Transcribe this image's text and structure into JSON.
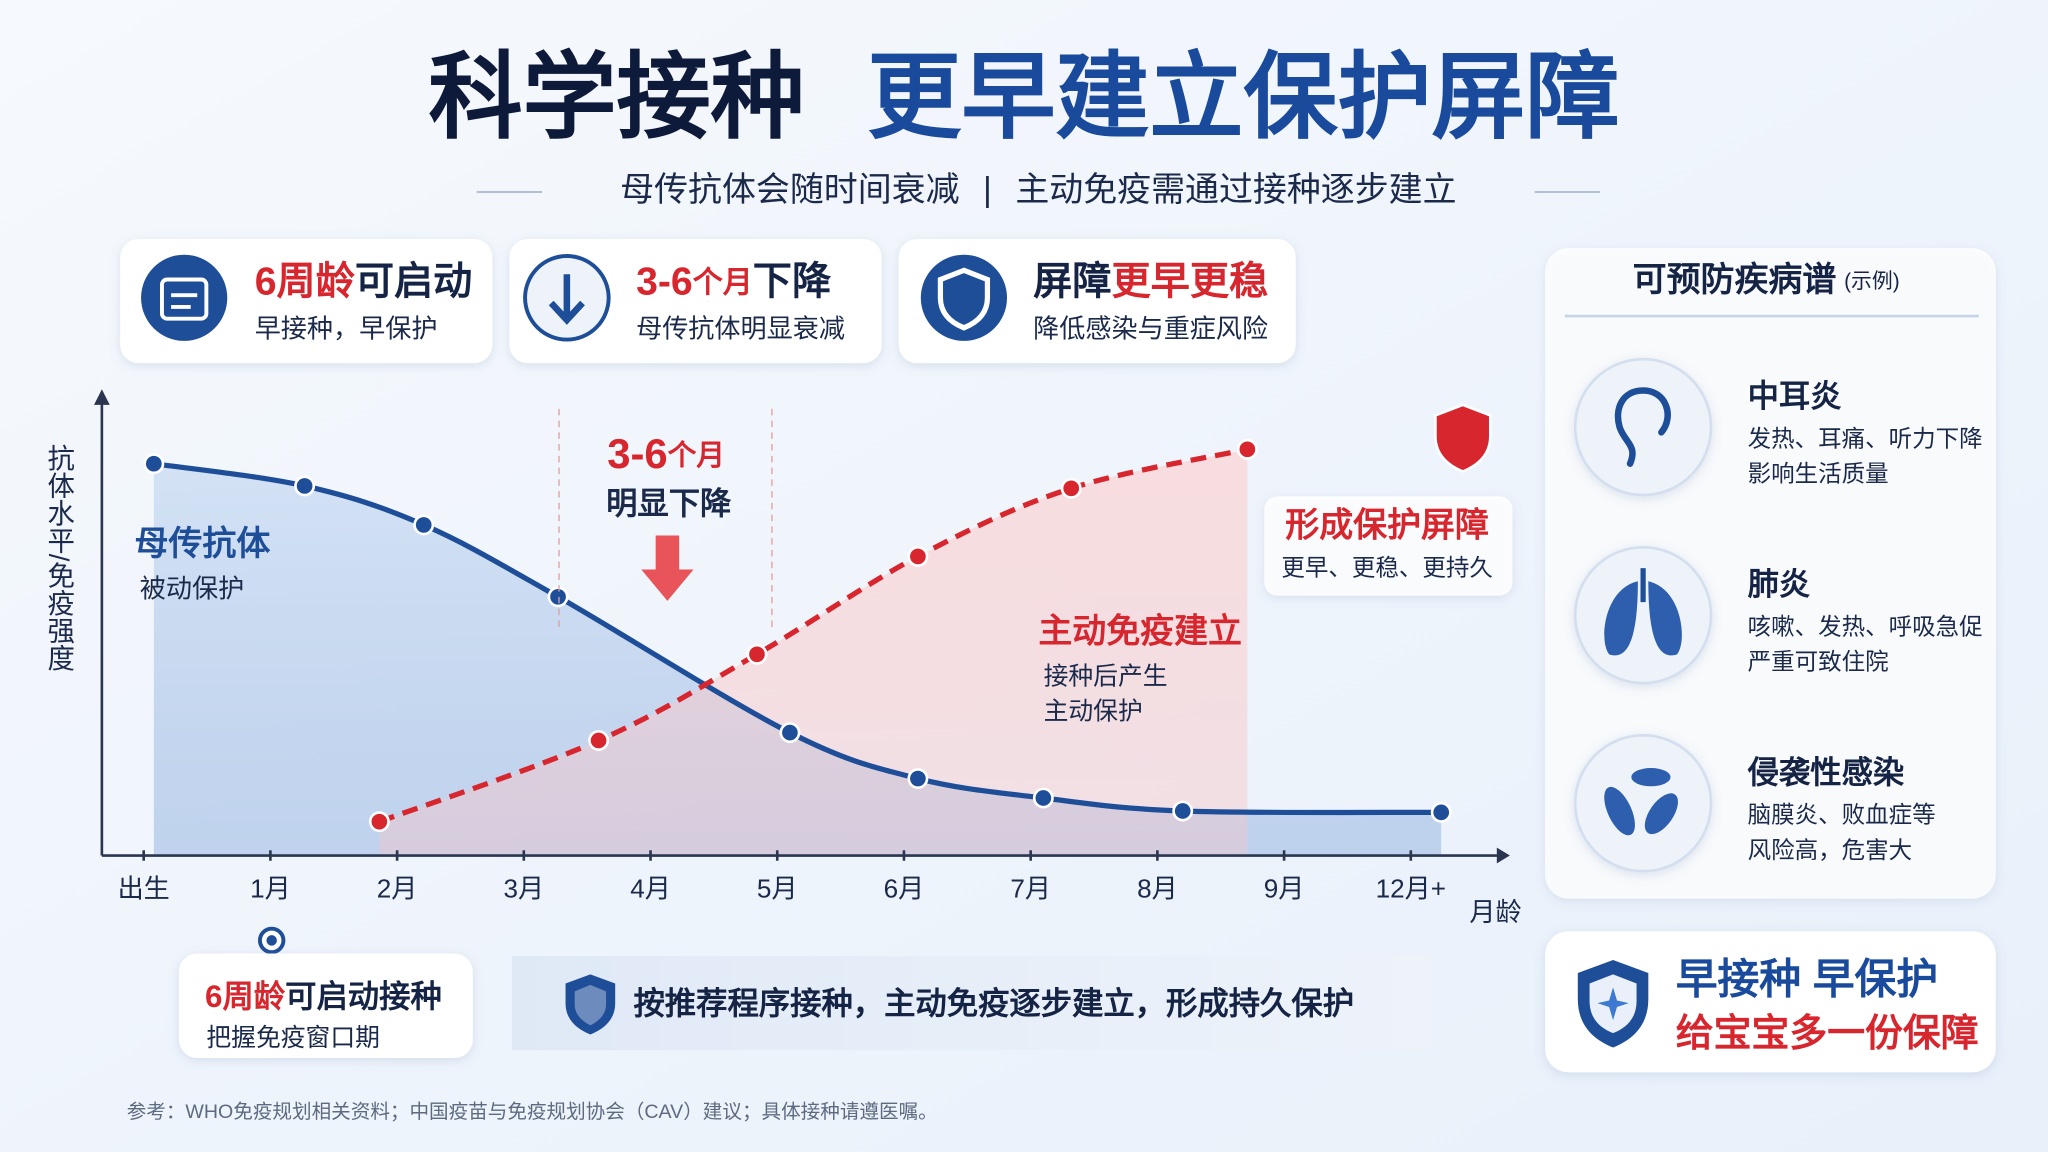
{
  "header": {
    "title_part1": "科学接种",
    "title_part2": "更早建立保护屏障",
    "subtitle_left": "母传抗体会随时间衰减",
    "subtitle_sep": "|",
    "subtitle_right": "主动免疫需通过接种逐步建立"
  },
  "cards": [
    {
      "parts": [
        {
          "text": "6周龄",
          "color": "#d7262e"
        },
        {
          "text": "可启动",
          "color": "#152445"
        }
      ],
      "sub": "早接种，早保护"
    },
    {
      "parts": [
        {
          "text": "3-6",
          "color": "#d7262e"
        },
        {
          "text": "个月",
          "color": "#d7262e"
        },
        {
          "text": "下降",
          "color": "#152445"
        }
      ],
      "sub": "母传抗体明显衰减"
    },
    {
      "parts": [
        {
          "text": "屏障",
          "color": "#152445"
        },
        {
          "text": "更早更稳",
          "color": "#d7262e"
        }
      ],
      "sub": "降低感染与重症风险"
    }
  ],
  "chart_data": {
    "type": "line",
    "y_label": "抗体水平/免疫强度",
    "x_label": "月龄",
    "xlim": [
      -0.33,
      10.72
    ],
    "ylim": [
      0,
      100
    ],
    "xticks": [
      {
        "value": 0,
        "label": "出生"
      },
      {
        "value": 1,
        "label": "1月"
      },
      {
        "value": 2,
        "label": "2月"
      },
      {
        "value": 3,
        "label": "3月"
      },
      {
        "value": 4,
        "label": "4月"
      },
      {
        "value": 5,
        "label": "5月"
      },
      {
        "value": 6,
        "label": "6月"
      },
      {
        "value": 7,
        "label": "7月"
      },
      {
        "value": 8,
        "label": "8月"
      },
      {
        "value": 9,
        "label": "9月"
      },
      {
        "value": 10,
        "label": "12月+"
      }
    ],
    "series": [
      {
        "name": "母传抗体",
        "subtitle": "被动保护",
        "color": "#1f4e99",
        "x": [
          0.08,
          1.27,
          2.21,
          3.27,
          5.1,
          6.11,
          7.1,
          8.2,
          10.24
        ],
        "values": [
          84.5,
          79.7,
          71.3,
          55.8,
          26.5,
          16.6,
          12.4,
          9.6,
          9.3
        ]
      },
      {
        "name": "主动免疫建立",
        "subtitle_lines": [
          "接种后产生",
          "主动保护"
        ],
        "color": "#d7262e",
        "x": [
          1.86,
          3.59,
          4.84,
          6.11,
          7.32,
          8.71
        ],
        "values": [
          7.3,
          24.8,
          43.4,
          64.5,
          79.2,
          87.6
        ]
      }
    ],
    "annotations": {
      "window_num": "3-6",
      "window_unit": "个月",
      "window_text": "明显下降",
      "barrier_title": "形成保护屏障",
      "barrier_sub": "更早、更稳、更持久"
    }
  },
  "timeline": {
    "highlight": "6周龄",
    "rest": "可启动接种",
    "sub": "把握免疫窗口期"
  },
  "banner": "按推荐程序接种，主动免疫逐步建立，形成持久保护",
  "side_panel": {
    "title": "可预防疾病谱",
    "note": "(示例)",
    "diseases": [
      {
        "name": "中耳炎",
        "lines": [
          "发热、耳痛、听力下降",
          "影响生活质量"
        ]
      },
      {
        "name": "肺炎",
        "lines": [
          "咳嗽、发热、呼吸急促",
          "严重可致住院"
        ]
      },
      {
        "name": "侵袭性感染",
        "lines": [
          "脑膜炎、败血症等",
          "风险高，危害大"
        ]
      }
    ]
  },
  "callout": {
    "line1": "早接种 早保护",
    "line2": "给宝宝多一份保障"
  },
  "footer": "参考：WHO免疫规划相关资料；中国疫苗与免疫规划协会（CAV）建议；具体接种请遵医嘱。"
}
